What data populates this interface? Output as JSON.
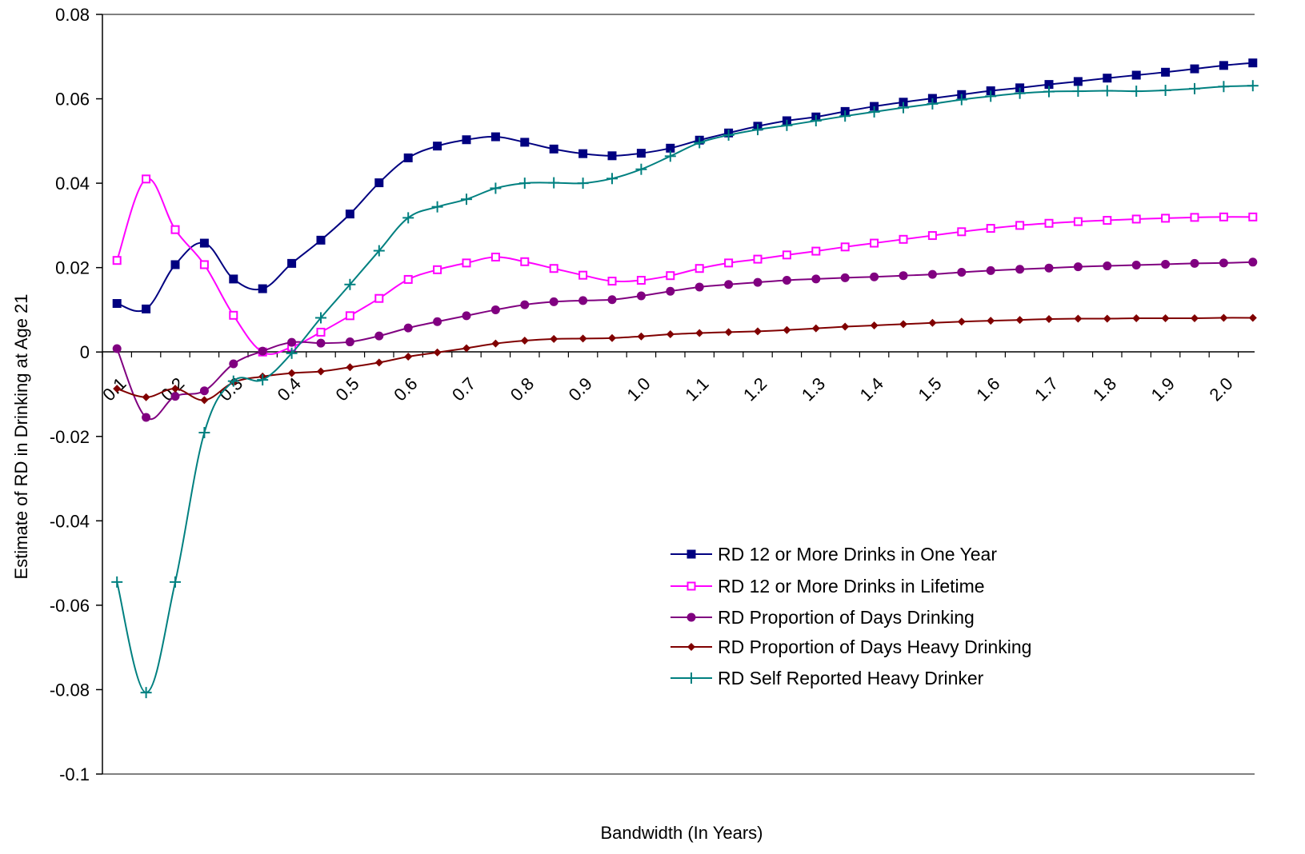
{
  "chart_data": {
    "type": "line",
    "title": "",
    "xlabel": "Bandwidth (In Years)",
    "ylabel": "Estimate of RD in Drinking at Age 21",
    "ylim": [
      -0.1,
      0.08
    ],
    "yticks": [
      "0.08",
      "0.06",
      "0.04",
      "0.02",
      "0",
      "-0.02",
      "-0.04",
      "-0.06",
      "-0.08",
      "-0.1"
    ],
    "ytick_values": [
      0.08,
      0.06,
      0.04,
      0.02,
      0,
      -0.02,
      -0.04,
      -0.06,
      -0.08,
      -0.1
    ],
    "xtick_labels": [
      "0.1",
      "0.2",
      "0.3",
      "0.4",
      "0.5",
      "0.6",
      "0.7",
      "0.8",
      "0.9",
      "1.0",
      "1.1",
      "1.2",
      "1.3",
      "1.4",
      "1.5",
      "1.6",
      "1.7",
      "1.8",
      "1.9",
      "2.0"
    ],
    "x": [
      0.1,
      0.15,
      0.2,
      0.25,
      0.3,
      0.35,
      0.4,
      0.45,
      0.5,
      0.55,
      0.6,
      0.65,
      0.7,
      0.75,
      0.8,
      0.85,
      0.9,
      0.95,
      1.0,
      1.05,
      1.1,
      1.15,
      1.2,
      1.25,
      1.3,
      1.35,
      1.4,
      1.45,
      1.5,
      1.55,
      1.6,
      1.65,
      1.7,
      1.75,
      1.8,
      1.85,
      1.9,
      1.95,
      2.0,
      2.05
    ],
    "grid": false,
    "legend_position": "lower-right",
    "series": [
      {
        "name": "RD 12 or More Drinks in One Year",
        "color": "#000080",
        "marker": "square-filled",
        "values": [
          0.0115,
          0.0102,
          0.0207,
          0.0258,
          0.0173,
          0.015,
          0.021,
          0.0265,
          0.0327,
          0.0401,
          0.046,
          0.0488,
          0.0503,
          0.051,
          0.0497,
          0.0481,
          0.047,
          0.0465,
          0.0471,
          0.0483,
          0.0502,
          0.0519,
          0.0535,
          0.0548,
          0.0557,
          0.057,
          0.0582,
          0.0592,
          0.0601,
          0.061,
          0.0619,
          0.0626,
          0.0634,
          0.0641,
          0.0649,
          0.0656,
          0.0663,
          0.0671,
          0.0679,
          0.0685
        ]
      },
      {
        "name": "RD 12 or More Drinks in Lifetime",
        "color": "#ff00ff",
        "marker": "square-open",
        "values": [
          0.0217,
          0.041,
          0.029,
          0.0207,
          0.0087,
          0.0,
          0.0012,
          0.0047,
          0.0086,
          0.0127,
          0.0172,
          0.0195,
          0.0211,
          0.0225,
          0.0214,
          0.0198,
          0.0182,
          0.0168,
          0.017,
          0.0181,
          0.0198,
          0.0211,
          0.022,
          0.023,
          0.0239,
          0.0249,
          0.0258,
          0.0267,
          0.0276,
          0.0285,
          0.0293,
          0.03,
          0.0305,
          0.0309,
          0.0312,
          0.0315,
          0.0317,
          0.0319,
          0.032,
          0.032
        ]
      },
      {
        "name": "RD Proportion of Days Drinking",
        "color": "#800080",
        "marker": "circle-filled",
        "values": [
          0.0008,
          -0.0155,
          -0.0105,
          -0.0092,
          -0.0028,
          0.0002,
          0.0023,
          0.0021,
          0.0024,
          0.0038,
          0.0057,
          0.0072,
          0.0086,
          0.01,
          0.0112,
          0.0119,
          0.0122,
          0.0124,
          0.0133,
          0.0144,
          0.0154,
          0.016,
          0.0165,
          0.017,
          0.0173,
          0.0176,
          0.0178,
          0.0181,
          0.0184,
          0.0189,
          0.0193,
          0.0196,
          0.0199,
          0.0202,
          0.0204,
          0.0206,
          0.0208,
          0.021,
          0.0211,
          0.0213
        ]
      },
      {
        "name": "RD Proportion of Days Heavy Drinking",
        "color": "#800000",
        "marker": "diamond-filled",
        "values": [
          -0.0087,
          -0.0107,
          -0.0087,
          -0.0114,
          -0.0072,
          -0.0058,
          -0.005,
          -0.0046,
          -0.0036,
          -0.0025,
          -0.0011,
          -0.0001,
          0.0009,
          0.002,
          0.0027,
          0.0031,
          0.0032,
          0.0033,
          0.0037,
          0.0042,
          0.0045,
          0.0047,
          0.0049,
          0.0052,
          0.0056,
          0.006,
          0.0063,
          0.0066,
          0.0069,
          0.0072,
          0.0074,
          0.0076,
          0.0078,
          0.0079,
          0.0079,
          0.008,
          0.008,
          0.008,
          0.0081,
          0.0081
        ]
      },
      {
        "name": "RD Self Reported Heavy Drinker",
        "color": "#008080",
        "marker": "plus",
        "values": [
          -0.0545,
          -0.0807,
          -0.0545,
          -0.0191,
          -0.0069,
          -0.0066,
          -0.0003,
          0.0081,
          0.016,
          0.024,
          0.0318,
          0.0344,
          0.0362,
          0.0388,
          0.04,
          0.0401,
          0.04,
          0.0411,
          0.0433,
          0.0464,
          0.0496,
          0.0514,
          0.0527,
          0.0537,
          0.0548,
          0.0559,
          0.0569,
          0.0579,
          0.0588,
          0.0598,
          0.0606,
          0.0613,
          0.0617,
          0.0618,
          0.0619,
          0.0618,
          0.062,
          0.0624,
          0.0629,
          0.0631
        ]
      }
    ]
  }
}
